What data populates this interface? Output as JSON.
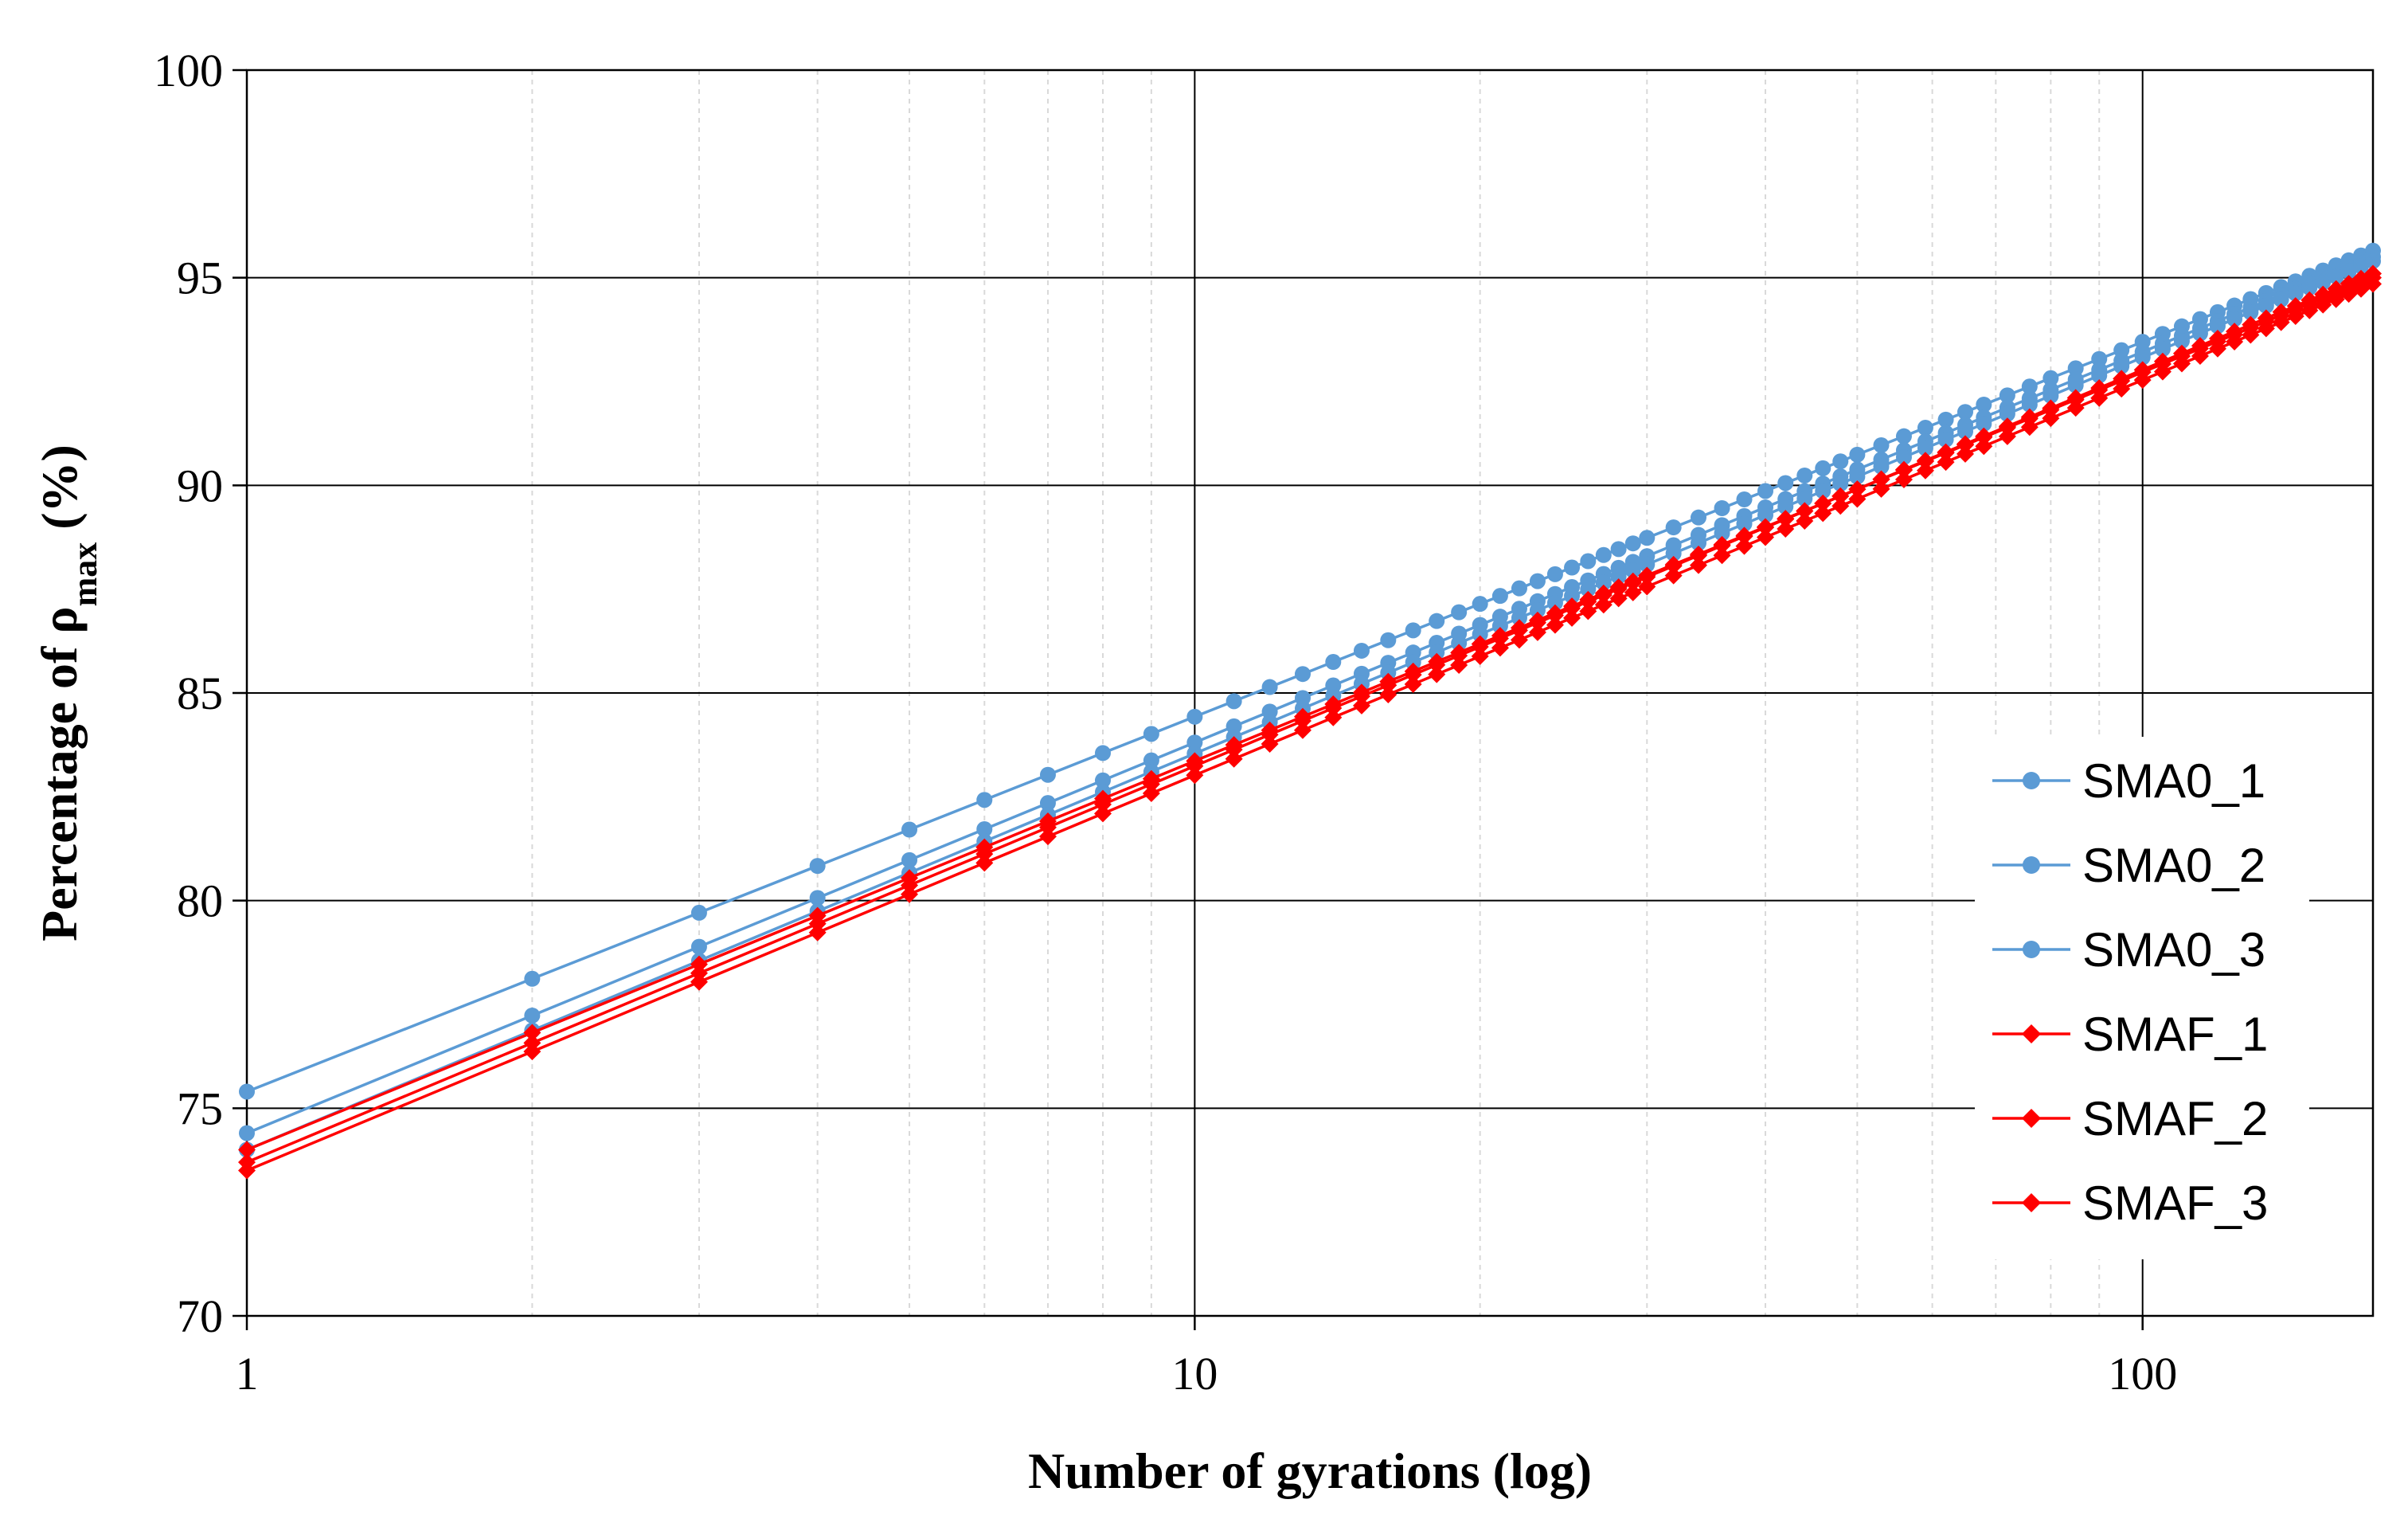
{
  "chart_data": {
    "type": "line",
    "xscale": "log",
    "xlabel": "Number of gyrations (log)",
    "ylabel": {
      "main": "Percentage of ρ",
      "sub": "max",
      "suffix": " (%)"
    },
    "xlim": [
      1,
      175
    ],
    "ylim": [
      70,
      100
    ],
    "x_ticks": [
      1,
      10,
      100
    ],
    "y_ticks": [
      70,
      75,
      80,
      85,
      90,
      95,
      100
    ],
    "grid": true,
    "legend_position": "right",
    "colors": {
      "blue": "#5b9bd5",
      "red": "#ff0000"
    },
    "n": [
      1,
      2,
      3,
      4,
      5,
      6,
      7,
      8,
      9,
      10,
      11,
      12,
      13,
      14,
      15,
      16,
      17,
      18,
      19,
      20,
      21,
      22,
      23,
      24,
      25,
      26,
      27,
      28,
      29,
      30,
      32,
      34,
      36,
      38,
      40,
      42,
      44,
      46,
      48,
      50,
      53,
      56,
      59,
      62,
      65,
      68,
      72,
      76,
      80,
      85,
      90,
      95,
      100,
      105,
      110,
      115,
      120,
      125,
      130,
      135,
      140,
      145,
      150,
      155,
      160,
      165,
      170,
      175
    ],
    "series": [
      {
        "name": "SMA0_1",
        "marker": "circle",
        "color": "#5b9bd5",
        "start": 75.4,
        "end": 95.65
      },
      {
        "name": "SMA0_2",
        "marker": "circle",
        "color": "#5b9bd5",
        "start": 74.4,
        "end": 95.5
      },
      {
        "name": "SMA0_3",
        "marker": "circle",
        "color": "#5b9bd5",
        "start": 74.0,
        "end": 95.4
      },
      {
        "name": "SMAF_1",
        "marker": "diamond",
        "color": "#ff0000",
        "start": 73.7,
        "end": 95.1
      },
      {
        "name": "SMAF_2",
        "marker": "diamond",
        "color": "#ff0000",
        "start": 74.0,
        "end": 95.0
      },
      {
        "name": "SMAF_3",
        "marker": "diamond",
        "color": "#ff0000",
        "start": 73.5,
        "end": 94.85
      }
    ]
  }
}
